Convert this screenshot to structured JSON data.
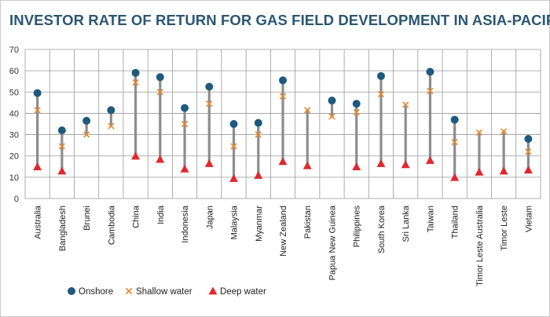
{
  "chart_data": {
    "type": "scatter",
    "title": "INVESTOR RATE OF RETURN FOR GAS FIELD DEVELOPMENT IN ASIA-PACIFIC",
    "xlabel": "",
    "ylabel": "",
    "ylim": [
      0,
      70
    ],
    "yticks": [
      "0",
      "10",
      "20",
      "30",
      "40",
      "50",
      "60",
      "70"
    ],
    "grid": true,
    "legend_position": "bottom-left",
    "categories": [
      "Australia",
      "Bangladesh",
      "Brunei",
      "Cambodia",
      "China",
      "India",
      "Indonesia",
      "Japan",
      "Malaysia",
      "Myanmar",
      "New Zealand",
      "Pakistan",
      "Papua New Guinea",
      "Philippines",
      "South Korea",
      "Sri Lanka",
      "Taiwan",
      "Thailand",
      "Timor Leste Australia",
      "Timor Leste",
      "Vietam"
    ],
    "series": [
      {
        "name": "Onshore",
        "marker": "circle",
        "color": "#1d5a7e",
        "values": [
          49.5,
          32,
          36.5,
          41.5,
          59,
          57,
          42.5,
          52.5,
          35,
          35.5,
          55.5,
          null,
          46,
          44.5,
          57.5,
          null,
          59.5,
          37,
          null,
          null,
          28
        ]
      },
      {
        "name": "Shallow water",
        "marker": "x",
        "color": "#e8862a",
        "values": [
          41.5,
          24.5,
          30,
          34,
          54.5,
          50,
          35,
          44.5,
          24.5,
          30,
          48,
          41.5,
          38.5,
          40.5,
          49,
          44,
          50.5,
          26.5,
          31,
          31.5,
          22
        ]
      },
      {
        "name": "Deep water",
        "marker": "triangle",
        "color": "#e0282e",
        "values": [
          14.5,
          12.5,
          null,
          null,
          19.5,
          18,
          13.5,
          16,
          9,
          10.5,
          17,
          15,
          null,
          14.5,
          16,
          15.5,
          17.5,
          9.5,
          12,
          12.5,
          13
        ]
      }
    ]
  }
}
